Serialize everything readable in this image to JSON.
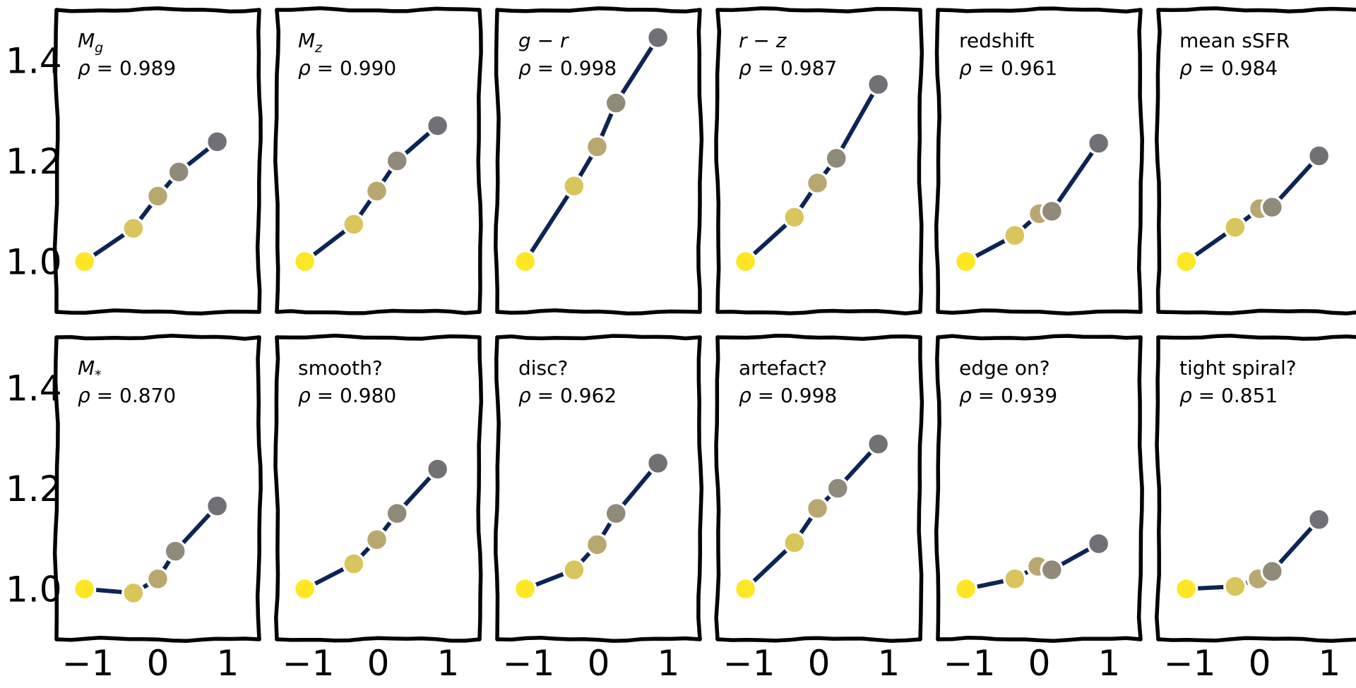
{
  "chart_data": {
    "type": "line",
    "grid": false,
    "xlim": [
      -1.45,
      1.45
    ],
    "ylim": [
      0.9,
      1.5
    ],
    "x_ticks": [
      "-1",
      "0",
      "1"
    ],
    "y_ticks": [
      "1.0",
      "1.2",
      "1.4"
    ],
    "rho_symbol": "ρ =",
    "point_colors": [
      "#fde725",
      "#d8c55b",
      "#b8a86f",
      "#8f8a7a",
      "#707075"
    ],
    "line_color": "#0d2455",
    "panels": [
      {
        "title": "M_g",
        "title_main": "M",
        "title_sub": "g",
        "rho": "0.989",
        "x": [
          -1.05,
          -0.35,
          0.0,
          0.3,
          0.85
        ],
        "y": [
          1.0,
          1.066,
          1.13,
          1.178,
          1.238
        ]
      },
      {
        "title": "M_z",
        "title_main": "M",
        "title_sub": "z",
        "rho": "0.990",
        "x": [
          -1.05,
          -0.35,
          -0.02,
          0.27,
          0.85
        ],
        "y": [
          1.0,
          1.074,
          1.14,
          1.2,
          1.27
        ]
      },
      {
        "title": "g − r",
        "rho": "0.998",
        "x": [
          -1.05,
          -0.35,
          -0.02,
          0.25,
          0.85
        ],
        "y": [
          1.0,
          1.15,
          1.228,
          1.315,
          1.445
        ]
      },
      {
        "title": "r − z",
        "rho": "0.987",
        "x": [
          -1.05,
          -0.35,
          -0.02,
          0.25,
          0.85
        ],
        "y": [
          1.0,
          1.088,
          1.156,
          1.205,
          1.352
        ]
      },
      {
        "title": "redshift",
        "rho": "0.961",
        "x": [
          -1.05,
          -0.35,
          0.0,
          0.18,
          0.85
        ],
        "y": [
          1.0,
          1.052,
          1.095,
          1.1,
          1.235
        ]
      },
      {
        "title": "mean sSFR",
        "rho": "0.984",
        "x": [
          -1.05,
          -0.35,
          0.0,
          0.18,
          0.85
        ],
        "y": [
          1.0,
          1.068,
          1.105,
          1.108,
          1.21
        ]
      },
      {
        "title": "M_*",
        "title_main": "M",
        "title_sub": "*",
        "rho": "0.870",
        "x": [
          -1.05,
          -0.35,
          0.0,
          0.25,
          0.85
        ],
        "y": [
          1.0,
          0.992,
          1.02,
          1.075,
          1.165
        ]
      },
      {
        "title": "smooth?",
        "rho": "0.980",
        "x": [
          -1.05,
          -0.35,
          -0.02,
          0.27,
          0.85
        ],
        "y": [
          1.0,
          1.05,
          1.098,
          1.15,
          1.238
        ]
      },
      {
        "title": "disc?",
        "rho": "0.962",
        "x": [
          -1.05,
          -0.35,
          -0.02,
          0.25,
          0.85
        ],
        "y": [
          1.0,
          1.038,
          1.088,
          1.15,
          1.25
        ]
      },
      {
        "title": "artefact?",
        "rho": "0.998",
        "x": [
          -1.05,
          -0.35,
          -0.02,
          0.27,
          0.85
        ],
        "y": [
          1.0,
          1.092,
          1.16,
          1.2,
          1.288
        ]
      },
      {
        "title": "edge on?",
        "rho": "0.939",
        "x": [
          -1.05,
          -0.35,
          -0.02,
          0.18,
          0.85
        ],
        "y": [
          1.0,
          1.02,
          1.045,
          1.038,
          1.09
        ]
      },
      {
        "title": "tight spiral?",
        "rho": "0.851",
        "x": [
          -1.05,
          -0.35,
          -0.02,
          0.18,
          0.85
        ],
        "y": [
          1.0,
          1.005,
          1.02,
          1.035,
          1.138
        ]
      }
    ]
  }
}
